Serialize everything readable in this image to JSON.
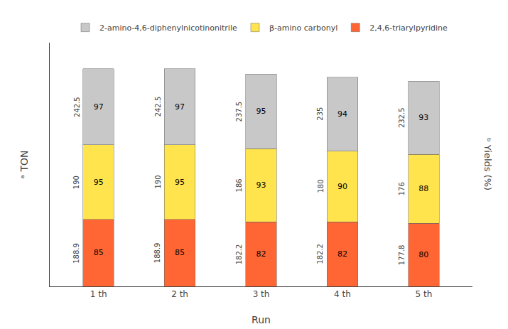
{
  "chart_data": {
    "type": "bar",
    "stacked": true,
    "categories": [
      "1 th",
      "2 th",
      "3 th",
      "4 th",
      "5 th"
    ],
    "xlabel": "Run",
    "ylabel": "ᵃ TON",
    "y2label": "ᵇ Yields (%)",
    "ylim": [
      0,
      310
    ],
    "yticks": [],
    "tick_labels": "x",
    "grid": false,
    "legend": "top",
    "data_labels": true,
    "series": [
      {
        "name": "2,4,6-triarylpyridine",
        "color": "#FF6633",
        "values": [
          85,
          85,
          82,
          82,
          80
        ],
        "ton": [
          188.9,
          188.9,
          182.2,
          182.2,
          177.8
        ]
      },
      {
        "name": "β-amino carbonyl",
        "color": "#FFE44D",
        "values": [
          95,
          95,
          93,
          90,
          88
        ],
        "ton": [
          190,
          190,
          186,
          180,
          176
        ]
      },
      {
        "name": "2-amino-4,6-diphenylnicotinonitrile",
        "color": "#C8C8C8",
        "values": [
          97,
          97,
          95,
          94,
          93
        ],
        "ton": [
          242.5,
          242.5,
          237.5,
          235,
          232.5
        ]
      }
    ]
  }
}
